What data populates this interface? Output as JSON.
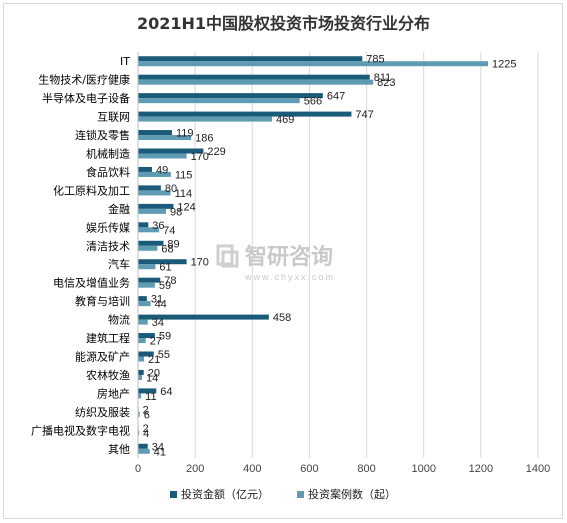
{
  "chart_data": {
    "type": "bar",
    "orientation": "horizontal",
    "title": "2021H1中国股权投资市场投资行业分布",
    "categories": [
      "IT",
      "生物技术/医疗健康",
      "半导体及电子设备",
      "互联网",
      "连锁及零售",
      "机械制造",
      "食品饮料",
      "化工原料及加工",
      "金融",
      "娱乐传媒",
      "清洁技术",
      "汽车",
      "电信及增值业务",
      "教育与培训",
      "物流",
      "建筑工程",
      "能源及矿产",
      "农林牧渔",
      "房地产",
      "纺织及服装",
      "广播电视及数字电视",
      "其他"
    ],
    "series": [
      {
        "name": "投资金额（亿元）",
        "color": "#1a5b7a",
        "values": [
          785,
          811,
          647,
          747,
          119,
          229,
          49,
          80,
          124,
          36,
          89,
          170,
          78,
          31,
          458,
          59,
          55,
          20,
          64,
          2,
          2,
          34
        ]
      },
      {
        "name": "投资案例数（起）",
        "color": "#5f9bb3",
        "values": [
          1225,
          823,
          566,
          469,
          186,
          170,
          115,
          114,
          98,
          74,
          68,
          61,
          59,
          44,
          34,
          27,
          21,
          14,
          11,
          6,
          4,
          41
        ]
      }
    ],
    "xlim": [
      0,
      1400
    ],
    "xticks": [
      0,
      200,
      400,
      600,
      800,
      1000,
      1200,
      1400
    ],
    "grid": true,
    "legend_position": "bottom"
  },
  "watermark": {
    "text": "智研咨询",
    "url": "www.chyxx.com"
  }
}
